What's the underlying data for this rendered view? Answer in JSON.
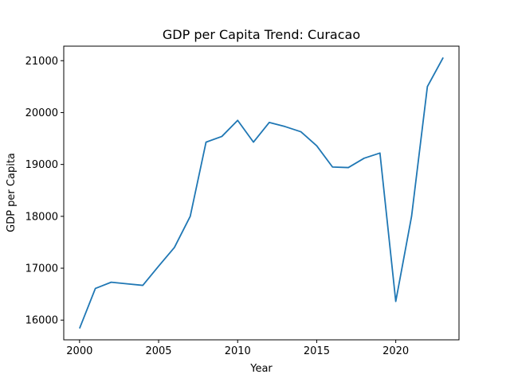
{
  "chart_data": {
    "type": "line",
    "title": "GDP per Capita Trend: Curacao",
    "xlabel": "Year",
    "ylabel": "GDP per Capita",
    "xlim": [
      1999,
      2024
    ],
    "ylim": [
      15620,
      21280
    ],
    "xticks": [
      2000,
      2005,
      2010,
      2015,
      2020
    ],
    "yticks": [
      16000,
      17000,
      18000,
      19000,
      20000,
      21000
    ],
    "grid": false,
    "line_color": "#1f77b4",
    "series": [
      {
        "x": [
          2000,
          2001,
          2002,
          2003,
          2004,
          2005,
          2006,
          2007,
          2008,
          2009,
          2010,
          2011,
          2012,
          2013,
          2014,
          2015,
          2016,
          2017,
          2018,
          2019,
          2020,
          2021,
          2022,
          2023
        ],
        "y": [
          15840,
          16610,
          16730,
          16700,
          16670,
          17040,
          17400,
          18000,
          19430,
          19540,
          19850,
          19430,
          19810,
          19730,
          19630,
          19360,
          18950,
          18940,
          19120,
          19220,
          16360,
          18000,
          20500,
          21060
        ]
      }
    ]
  }
}
